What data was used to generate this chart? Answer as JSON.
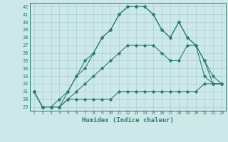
{
  "title": "",
  "xlabel": "Humidex (Indice chaleur)",
  "bg_color": "#cce8e8",
  "line_color": "#2e7d6e",
  "grid_color": "#aacfcf",
  "xlim": [
    0.5,
    23.5
  ],
  "ylim": [
    28.5,
    42.5
  ],
  "yticks": [
    29,
    30,
    31,
    32,
    33,
    34,
    35,
    36,
    37,
    38,
    39,
    40,
    41,
    42
  ],
  "xticks": [
    1,
    2,
    3,
    4,
    5,
    6,
    7,
    8,
    9,
    10,
    11,
    12,
    13,
    14,
    15,
    16,
    17,
    18,
    19,
    20,
    21,
    22,
    23
  ],
  "series": [
    {
      "x": [
        1,
        2,
        3,
        4,
        5,
        6,
        7,
        8,
        9,
        10,
        11,
        12,
        13,
        14,
        15,
        16,
        17,
        18,
        19,
        20,
        21,
        22,
        23
      ],
      "y": [
        31,
        29,
        29,
        29,
        31,
        33,
        34,
        36,
        38,
        39,
        41,
        42,
        42,
        42,
        41,
        39,
        38,
        40,
        38,
        37,
        35,
        32,
        32
      ]
    },
    {
      "x": [
        1,
        2,
        3,
        4,
        5,
        6,
        7,
        8,
        9,
        10,
        11,
        12,
        13,
        14,
        15,
        16,
        17,
        18,
        19,
        20,
        21,
        22,
        23
      ],
      "y": [
        31,
        29,
        29,
        30,
        31,
        33,
        35,
        36,
        38,
        39,
        41,
        42,
        42,
        42,
        41,
        39,
        38,
        40,
        38,
        37,
        35,
        33,
        32
      ]
    },
    {
      "x": [
        1,
        2,
        3,
        4,
        5,
        6,
        7,
        8,
        9,
        10,
        11,
        12,
        13,
        14,
        15,
        16,
        17,
        18,
        19,
        20,
        21,
        22,
        23
      ],
      "y": [
        31,
        29,
        29,
        29,
        30,
        31,
        32,
        33,
        34,
        35,
        36,
        37,
        37,
        37,
        37,
        36,
        35,
        35,
        37,
        37,
        33,
        32,
        32
      ]
    },
    {
      "x": [
        1,
        2,
        3,
        4,
        5,
        6,
        7,
        8,
        9,
        10,
        11,
        12,
        13,
        14,
        15,
        16,
        17,
        18,
        19,
        20,
        21,
        22,
        23
      ],
      "y": [
        31,
        29,
        29,
        29,
        30,
        30,
        30,
        30,
        30,
        30,
        31,
        31,
        31,
        31,
        31,
        31,
        31,
        31,
        31,
        31,
        32,
        32,
        32
      ]
    }
  ]
}
